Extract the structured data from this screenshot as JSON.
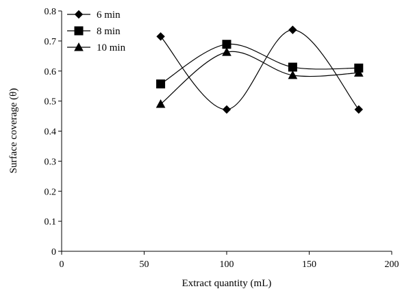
{
  "chart_data": {
    "type": "line",
    "title": "",
    "xlabel": "Extract quantity (mL)",
    "ylabel": "Surface coverage (θ)",
    "xlim": [
      0,
      200
    ],
    "ylim": [
      0,
      0.8
    ],
    "xticks": [
      0,
      50,
      100,
      150,
      200
    ],
    "yticks": [
      0,
      0.1,
      0.2,
      0.3,
      0.4,
      0.5,
      0.6,
      0.7,
      0.8
    ],
    "grid": false,
    "legend_position": "top-left",
    "line_style": "smooth",
    "x": [
      60,
      100,
      140,
      180
    ],
    "series": [
      {
        "name": "6 min",
        "marker": "diamond",
        "values": [
          0.715,
          0.472,
          0.737,
          0.472
        ]
      },
      {
        "name": "8 min",
        "marker": "square",
        "values": [
          0.557,
          0.689,
          0.613,
          0.61
        ]
      },
      {
        "name": "10 min",
        "marker": "triangle",
        "values": [
          0.49,
          0.663,
          0.586,
          0.594
        ]
      }
    ],
    "colors": {
      "line": "#000000",
      "marker": "#000000",
      "background": "#ffffff"
    }
  }
}
